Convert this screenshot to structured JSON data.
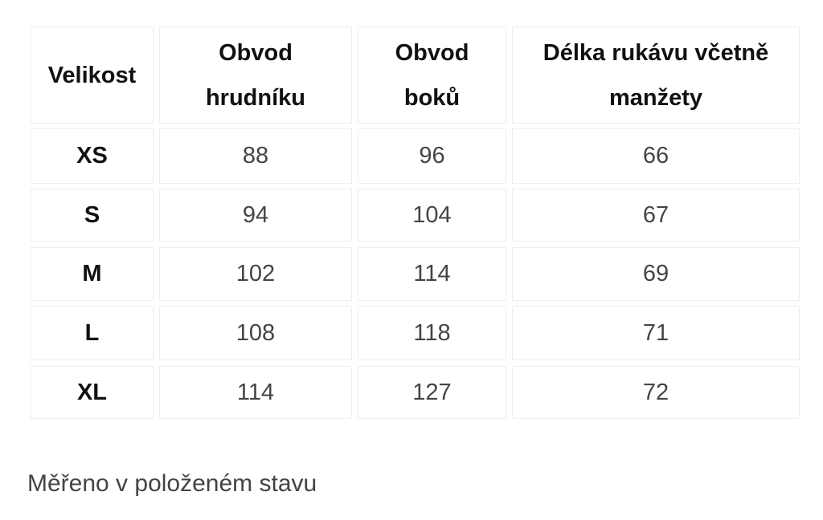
{
  "table": {
    "header": [
      "Velikost",
      "Obvod hrudníku",
      "Obvod boků",
      "Délka rukávu včetně manžety"
    ],
    "rows": [
      [
        "XS",
        88,
        96,
        66
      ],
      [
        "S",
        94,
        104,
        67
      ],
      [
        "M",
        102,
        114,
        69
      ],
      [
        "L",
        108,
        118,
        71
      ],
      [
        "XL",
        114,
        127,
        72
      ]
    ]
  },
  "note": "Měřeno v položeném stavu"
}
